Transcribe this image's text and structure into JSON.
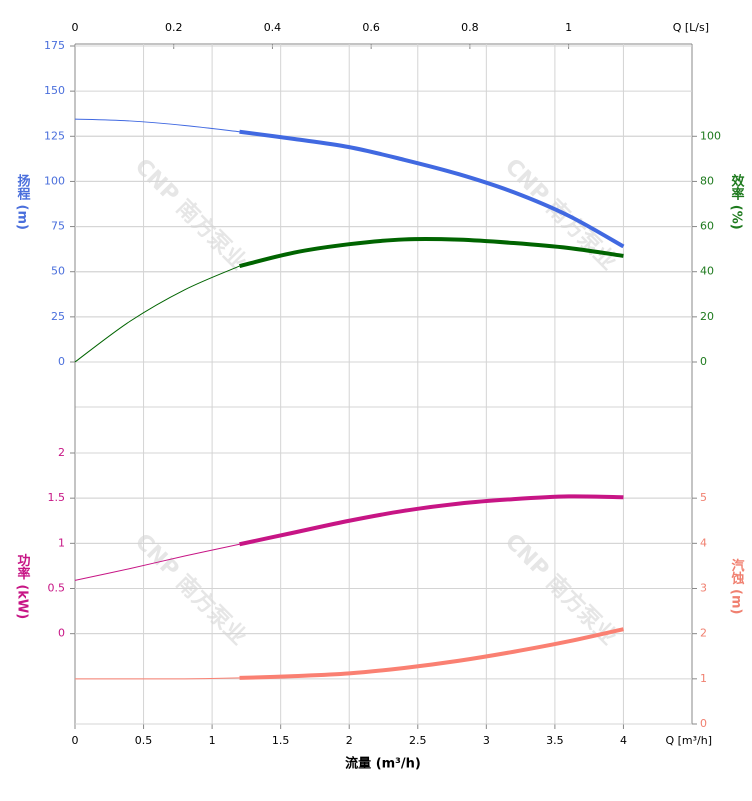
{
  "chart_data": {
    "type": "line",
    "x_label": "流量 (m³/h)",
    "x_unit_label": "Q [m³/h]",
    "x2_unit_label": "Q [L/s]",
    "watermark": "CNP 南方泵业",
    "x": [
      0,
      0.4,
      0.8,
      1.2,
      1.6,
      2.0,
      2.4,
      2.8,
      3.2,
      3.6,
      4.0
    ],
    "xlim": [
      0,
      4.5
    ],
    "xticks": [
      0,
      0.5,
      1,
      1.5,
      2,
      2.5,
      3,
      3.5,
      4
    ],
    "x2lim": [
      0,
      1.25
    ],
    "x2ticks": [
      0,
      0.2,
      0.4,
      0.6,
      0.8,
      1
    ],
    "operating_range": [
      1.2,
      4.0
    ],
    "grid": true,
    "panels": [
      {
        "ylabel": "扬程 (m)",
        "ylabel_color": "#4a6fdc",
        "ylim": [
          0,
          175
        ],
        "yticks": [
          0,
          25,
          50,
          75,
          100,
          125,
          150,
          175
        ],
        "y2label": "效率 (%)",
        "y2label_color": "#1e7a1e",
        "y2lim": [
          0,
          140
        ],
        "y2ticks": [
          0,
          20,
          40,
          60,
          80,
          100
        ],
        "series": [
          {
            "color": "#4169e1",
            "values": [
              134.5,
              133.5,
              131,
              127.5,
              123.5,
              119,
              112,
              104,
              94,
              81,
              64
            ]
          },
          {
            "color": "#006400",
            "axis": "y2",
            "values": [
              0,
              18,
              32,
              42.5,
              48.5,
              52.2,
              54.3,
              54.2,
              52.7,
              50.5,
              47
            ]
          }
        ]
      },
      {
        "ylabel": "功率 (kW)",
        "ylabel_color": "#c71585",
        "ylim": [
          -1,
          2
        ],
        "yticks": [
          0,
          0.5,
          1,
          1.5,
          2
        ],
        "y2label": "汽蚀 (m)",
        "y2label_color": "#f08070",
        "y2lim": [
          0,
          6
        ],
        "y2ticks": [
          0,
          1,
          2,
          3,
          4,
          5
        ],
        "series": [
          {
            "color": "#c71585",
            "values": [
              0.59,
              0.72,
              0.86,
              0.99,
              1.12,
              1.25,
              1.36,
              1.44,
              1.49,
              1.52,
              1.51
            ]
          },
          {
            "color": "#fa8072",
            "axis": "y2",
            "values": [
              1,
              1,
              1,
              1.02,
              1.06,
              1.12,
              1.24,
              1.4,
              1.6,
              1.83,
              2.1
            ]
          }
        ]
      }
    ]
  }
}
